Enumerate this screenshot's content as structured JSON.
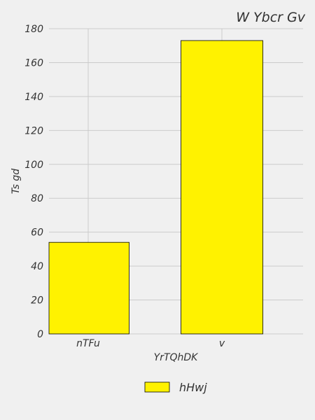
{
  "chart_data": {
    "type": "bar",
    "title": "W  Ybcr Gv",
    "xlabel": "YrTQhDK",
    "ylabel": "Ts gd",
    "categories": [
      "nTFu",
      "v"
    ],
    "series": [
      {
        "name": "hHwj",
        "values": [
          54,
          173
        ],
        "color": "#fff200"
      }
    ],
    "ylim": [
      0,
      180
    ],
    "yticks": [
      0,
      20,
      40,
      60,
      80,
      100,
      120,
      140,
      160,
      180
    ],
    "grid": true,
    "legend_position": "bottom-center"
  }
}
